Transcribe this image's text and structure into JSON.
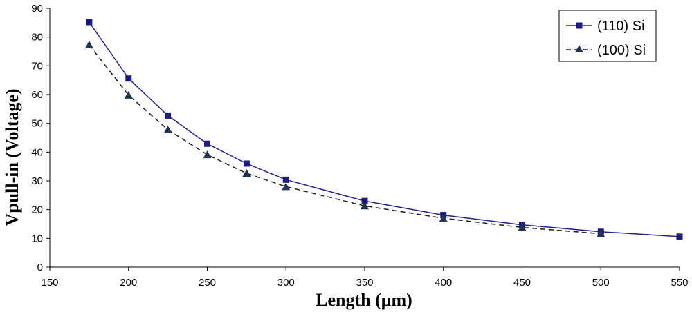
{
  "chart_data": {
    "type": "line",
    "xlabel": "Length (μm)",
    "ylabel": "Vpull-in (Voltage)",
    "xlim": [
      150,
      550
    ],
    "ylim": [
      0,
      90
    ],
    "xticks": [
      150,
      200,
      250,
      300,
      350,
      400,
      450,
      500,
      550
    ],
    "yticks": [
      0,
      10,
      20,
      30,
      40,
      50,
      60,
      70,
      80,
      90
    ],
    "grid": false,
    "legend_position": "top-right",
    "series": [
      {
        "name": "(110) Si",
        "color": "#1f1f8f",
        "line_style": "solid",
        "marker": "square",
        "x": [
          175,
          200,
          225,
          250,
          275,
          300,
          350,
          400,
          450,
          500,
          550
        ],
        "y": [
          85.2,
          65.6,
          52.7,
          42.9,
          36.0,
          30.4,
          23.0,
          18.1,
          14.7,
          12.3,
          10.6
        ]
      },
      {
        "name": "(100) Si",
        "color": "#1a1a1a",
        "marker_color": "#1f3550",
        "line_style": "dashed",
        "marker": "triangle",
        "x": [
          175,
          200,
          225,
          250,
          275,
          300,
          350,
          400,
          450,
          500
        ],
        "y": [
          77.3,
          59.8,
          47.8,
          39.1,
          32.6,
          28.0,
          21.3,
          17.0,
          13.8,
          11.6
        ]
      }
    ]
  }
}
